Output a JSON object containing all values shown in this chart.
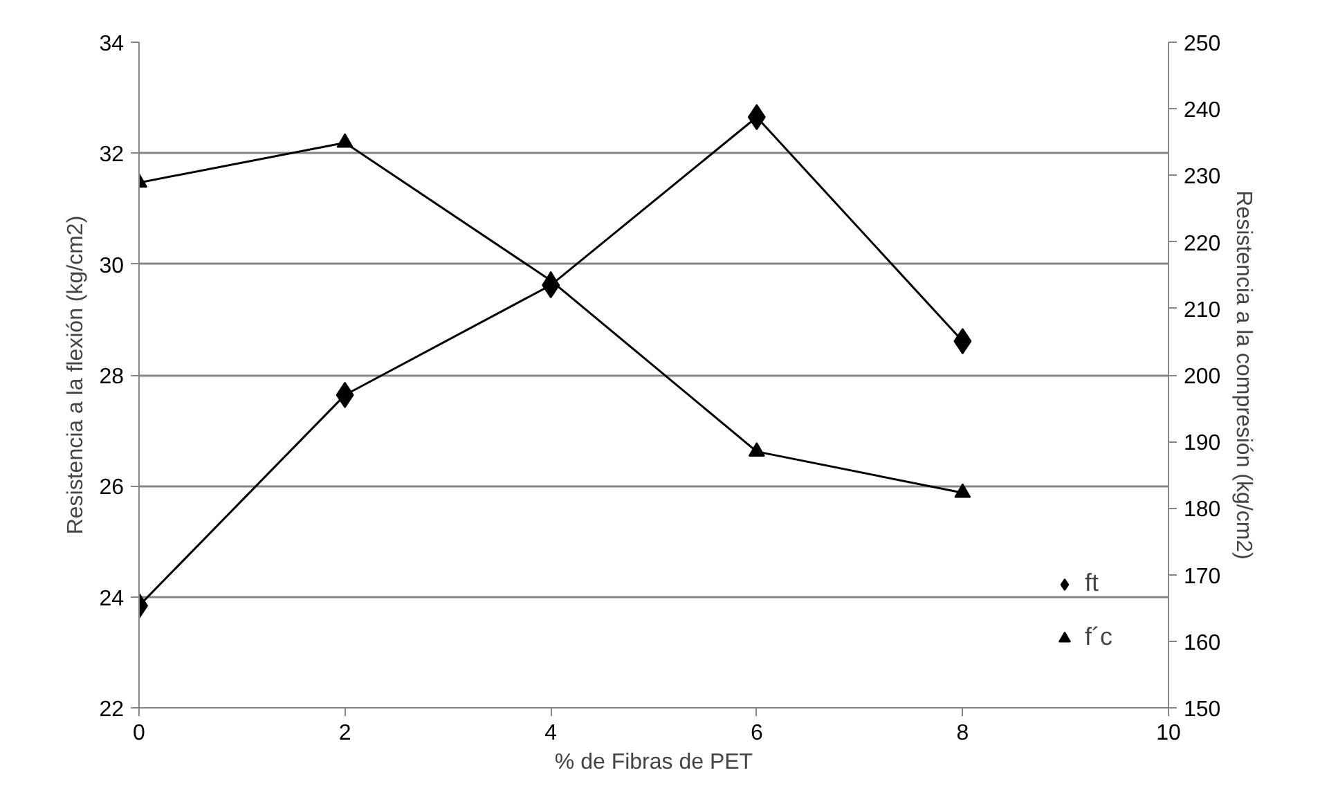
{
  "chart_data": {
    "type": "line",
    "xlabel": "% de Fibras de PET",
    "ylabel": "Resistencia a la flexión (kg/cm2)",
    "y2label": "Resistencia a la compresión (kg/cm2)",
    "x": [
      0,
      2,
      4,
      6,
      8
    ],
    "series": [
      {
        "name": "ft",
        "color": "#000000",
        "marker": "diamond",
        "values": [
          23.84,
          27.64,
          29.62,
          32.65,
          28.61
        ]
      },
      {
        "name": "f´c",
        "color": "#000000",
        "marker": "triangle",
        "axis": "y2",
        "values": [
          228.9,
          234.9,
          214.2,
          188.5,
          182.3
        ]
      }
    ],
    "xlim": [
      0,
      10
    ],
    "xticks": [
      0,
      2,
      4,
      6,
      8,
      10
    ],
    "ylim": [
      22,
      34
    ],
    "yticks": [
      22,
      24,
      26,
      28,
      30,
      32,
      34
    ],
    "y2lim": [
      150,
      250
    ],
    "y2ticks": [
      150,
      160,
      170,
      180,
      190,
      200,
      210,
      220,
      230,
      240,
      250
    ],
    "grid": "y",
    "legend": "bottom right",
    "line_style": "solid"
  }
}
